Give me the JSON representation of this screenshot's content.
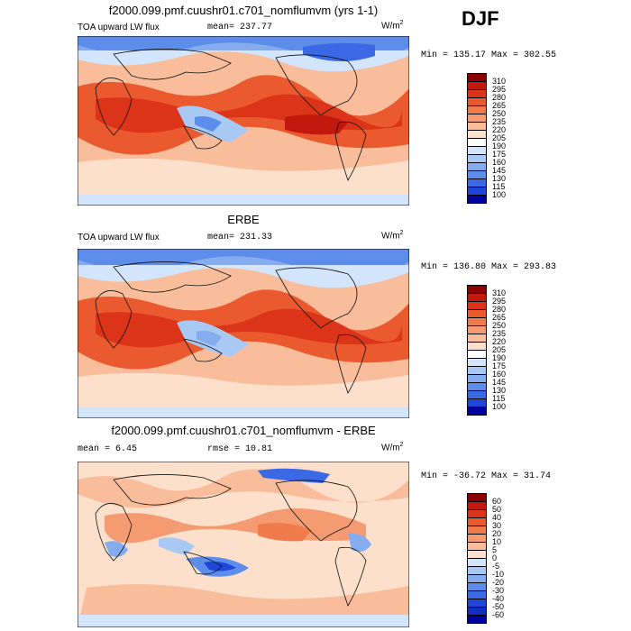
{
  "season": "DJF",
  "panels": [
    {
      "title": "f2000.099.pmf.cuushr01.c701_nomflumvm (yrs 1-1)",
      "variable": "TOA upward LW flux",
      "mean_text": "mean= 237.77",
      "rmse_text": "",
      "units": "W/m",
      "units_exp": "2",
      "minmax_text": "Min = 135.17 Max = 302.55",
      "colorbar_key": "abs"
    },
    {
      "title": "ERBE",
      "variable": "TOA upward LW flux",
      "mean_text": "mean= 231.33",
      "rmse_text": "",
      "units": "W/m",
      "units_exp": "2",
      "minmax_text": "Min = 136.80 Max = 293.83",
      "colorbar_key": "abs"
    },
    {
      "title": "f2000.099.pmf.cuushr01.c701_nomflumvm - ERBE",
      "variable": "",
      "mean_text": "mean =    6.45",
      "rmse_text": "rmse =  10.81",
      "units": "W/m",
      "units_exp": "2",
      "minmax_text": "Min = -36.72 Max =  31.74",
      "colorbar_key": "diff"
    }
  ],
  "colorbars": {
    "abs": {
      "labels": [
        "310",
        "295",
        "280",
        "265",
        "250",
        "235",
        "220",
        "205",
        "190",
        "175",
        "160",
        "145",
        "130",
        "115",
        "100"
      ],
      "colors": [
        "#8b0000",
        "#c2190f",
        "#dc3418",
        "#ea5a2e",
        "#f07b4c",
        "#f59b72",
        "#f9bd9c",
        "#fce0cc",
        "#ffffff",
        "#d2e5fa",
        "#a9c9f5",
        "#84acef",
        "#5d8deb",
        "#3b69e5",
        "#1e46d8",
        "#0000a0"
      ]
    },
    "diff": {
      "labels": [
        "60",
        "50",
        "40",
        "30",
        "20",
        "10",
        "5",
        "0",
        "-5",
        "-10",
        "-20",
        "-30",
        "-40",
        "-50",
        "-60"
      ],
      "colors": [
        "#8b0000",
        "#c2190f",
        "#dc3418",
        "#ea5a2e",
        "#f07b4c",
        "#f59b72",
        "#f9bd9c",
        "#fce0cc",
        "#d2e5fa",
        "#a9c9f5",
        "#84acef",
        "#5d8deb",
        "#3b69e5",
        "#1e46d8",
        "#0e2fc0",
        "#0000a0"
      ]
    }
  }
}
